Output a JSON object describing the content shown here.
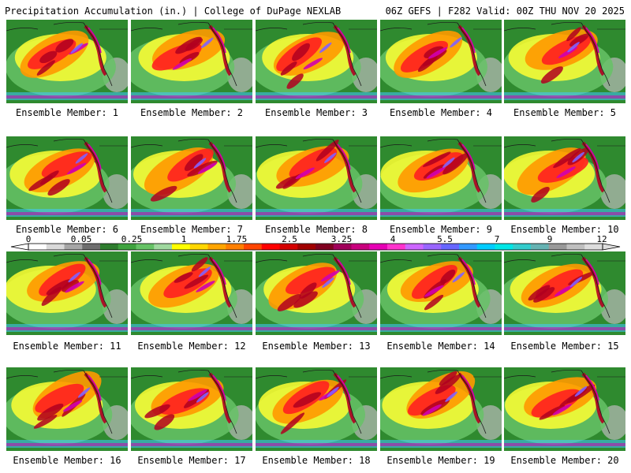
{
  "header": {
    "left_title": "Precipitation Accumulation (in.) | College of DuPage NEXLAB",
    "right_title": "06Z GEFS | F282 Valid: 00Z THU NOV 20 2025"
  },
  "panels": [
    {
      "label": "Ensemble Member: 1"
    },
    {
      "label": "Ensemble Member: 2"
    },
    {
      "label": "Ensemble Member: 3"
    },
    {
      "label": "Ensemble Member: 4"
    },
    {
      "label": "Ensemble Member: 5"
    },
    {
      "label": "Ensemble Member: 6"
    },
    {
      "label": "Ensemble Member: 7"
    },
    {
      "label": "Ensemble Member: 8"
    },
    {
      "label": "Ensemble Member: 9"
    },
    {
      "label": "Ensemble Member: 10"
    },
    {
      "label": "Ensemble Member: 11"
    },
    {
      "label": "Ensemble Member: 12"
    },
    {
      "label": "Ensemble Member: 13"
    },
    {
      "label": "Ensemble Member: 14"
    },
    {
      "label": "Ensemble Member: 15"
    },
    {
      "label": "Ensemble Member: 16"
    },
    {
      "label": "Ensemble Member: 17"
    },
    {
      "label": "Ensemble Member: 18"
    },
    {
      "label": "Ensemble Member: 19"
    },
    {
      "label": "Ensemble Member: 20"
    }
  ],
  "colorbar": {
    "tick_labels": [
      "0",
      "0.05",
      "0.25",
      "1",
      "1.75",
      "2.5",
      "3.25",
      "4",
      "5.5",
      "7",
      "9",
      "12"
    ],
    "colors": [
      "#ffffff",
      "#d9d9d9",
      "#a6a6a6",
      "#6e6e6e",
      "#2e7d2e",
      "#3fa33f",
      "#66c266",
      "#9fd89f",
      "#ffff00",
      "#ffd700",
      "#ffa500",
      "#ff7f00",
      "#ff4500",
      "#ff0000",
      "#d40000",
      "#a00000",
      "#800020",
      "#a0005a",
      "#c8007d",
      "#e600b4",
      "#ff33cc",
      "#cc66ff",
      "#9966ff",
      "#6666ff",
      "#3399ff",
      "#00ccff",
      "#00e6e6",
      "#33cccc",
      "#66b3b3",
      "#999999",
      "#bfbfbf",
      "#dddddd"
    ]
  },
  "palette": {
    "land": "#2f8a2f",
    "light_green": "#66c266",
    "yellow": "#ffff33",
    "orange": "#ff9900",
    "red": "#ff2020",
    "dark_red": "#b00020",
    "magenta": "#d000b0",
    "violet": "#8060ff",
    "cyan": "#40c8ff",
    "gray": "#bbbbbb",
    "coast": "#1a1a1a"
  }
}
